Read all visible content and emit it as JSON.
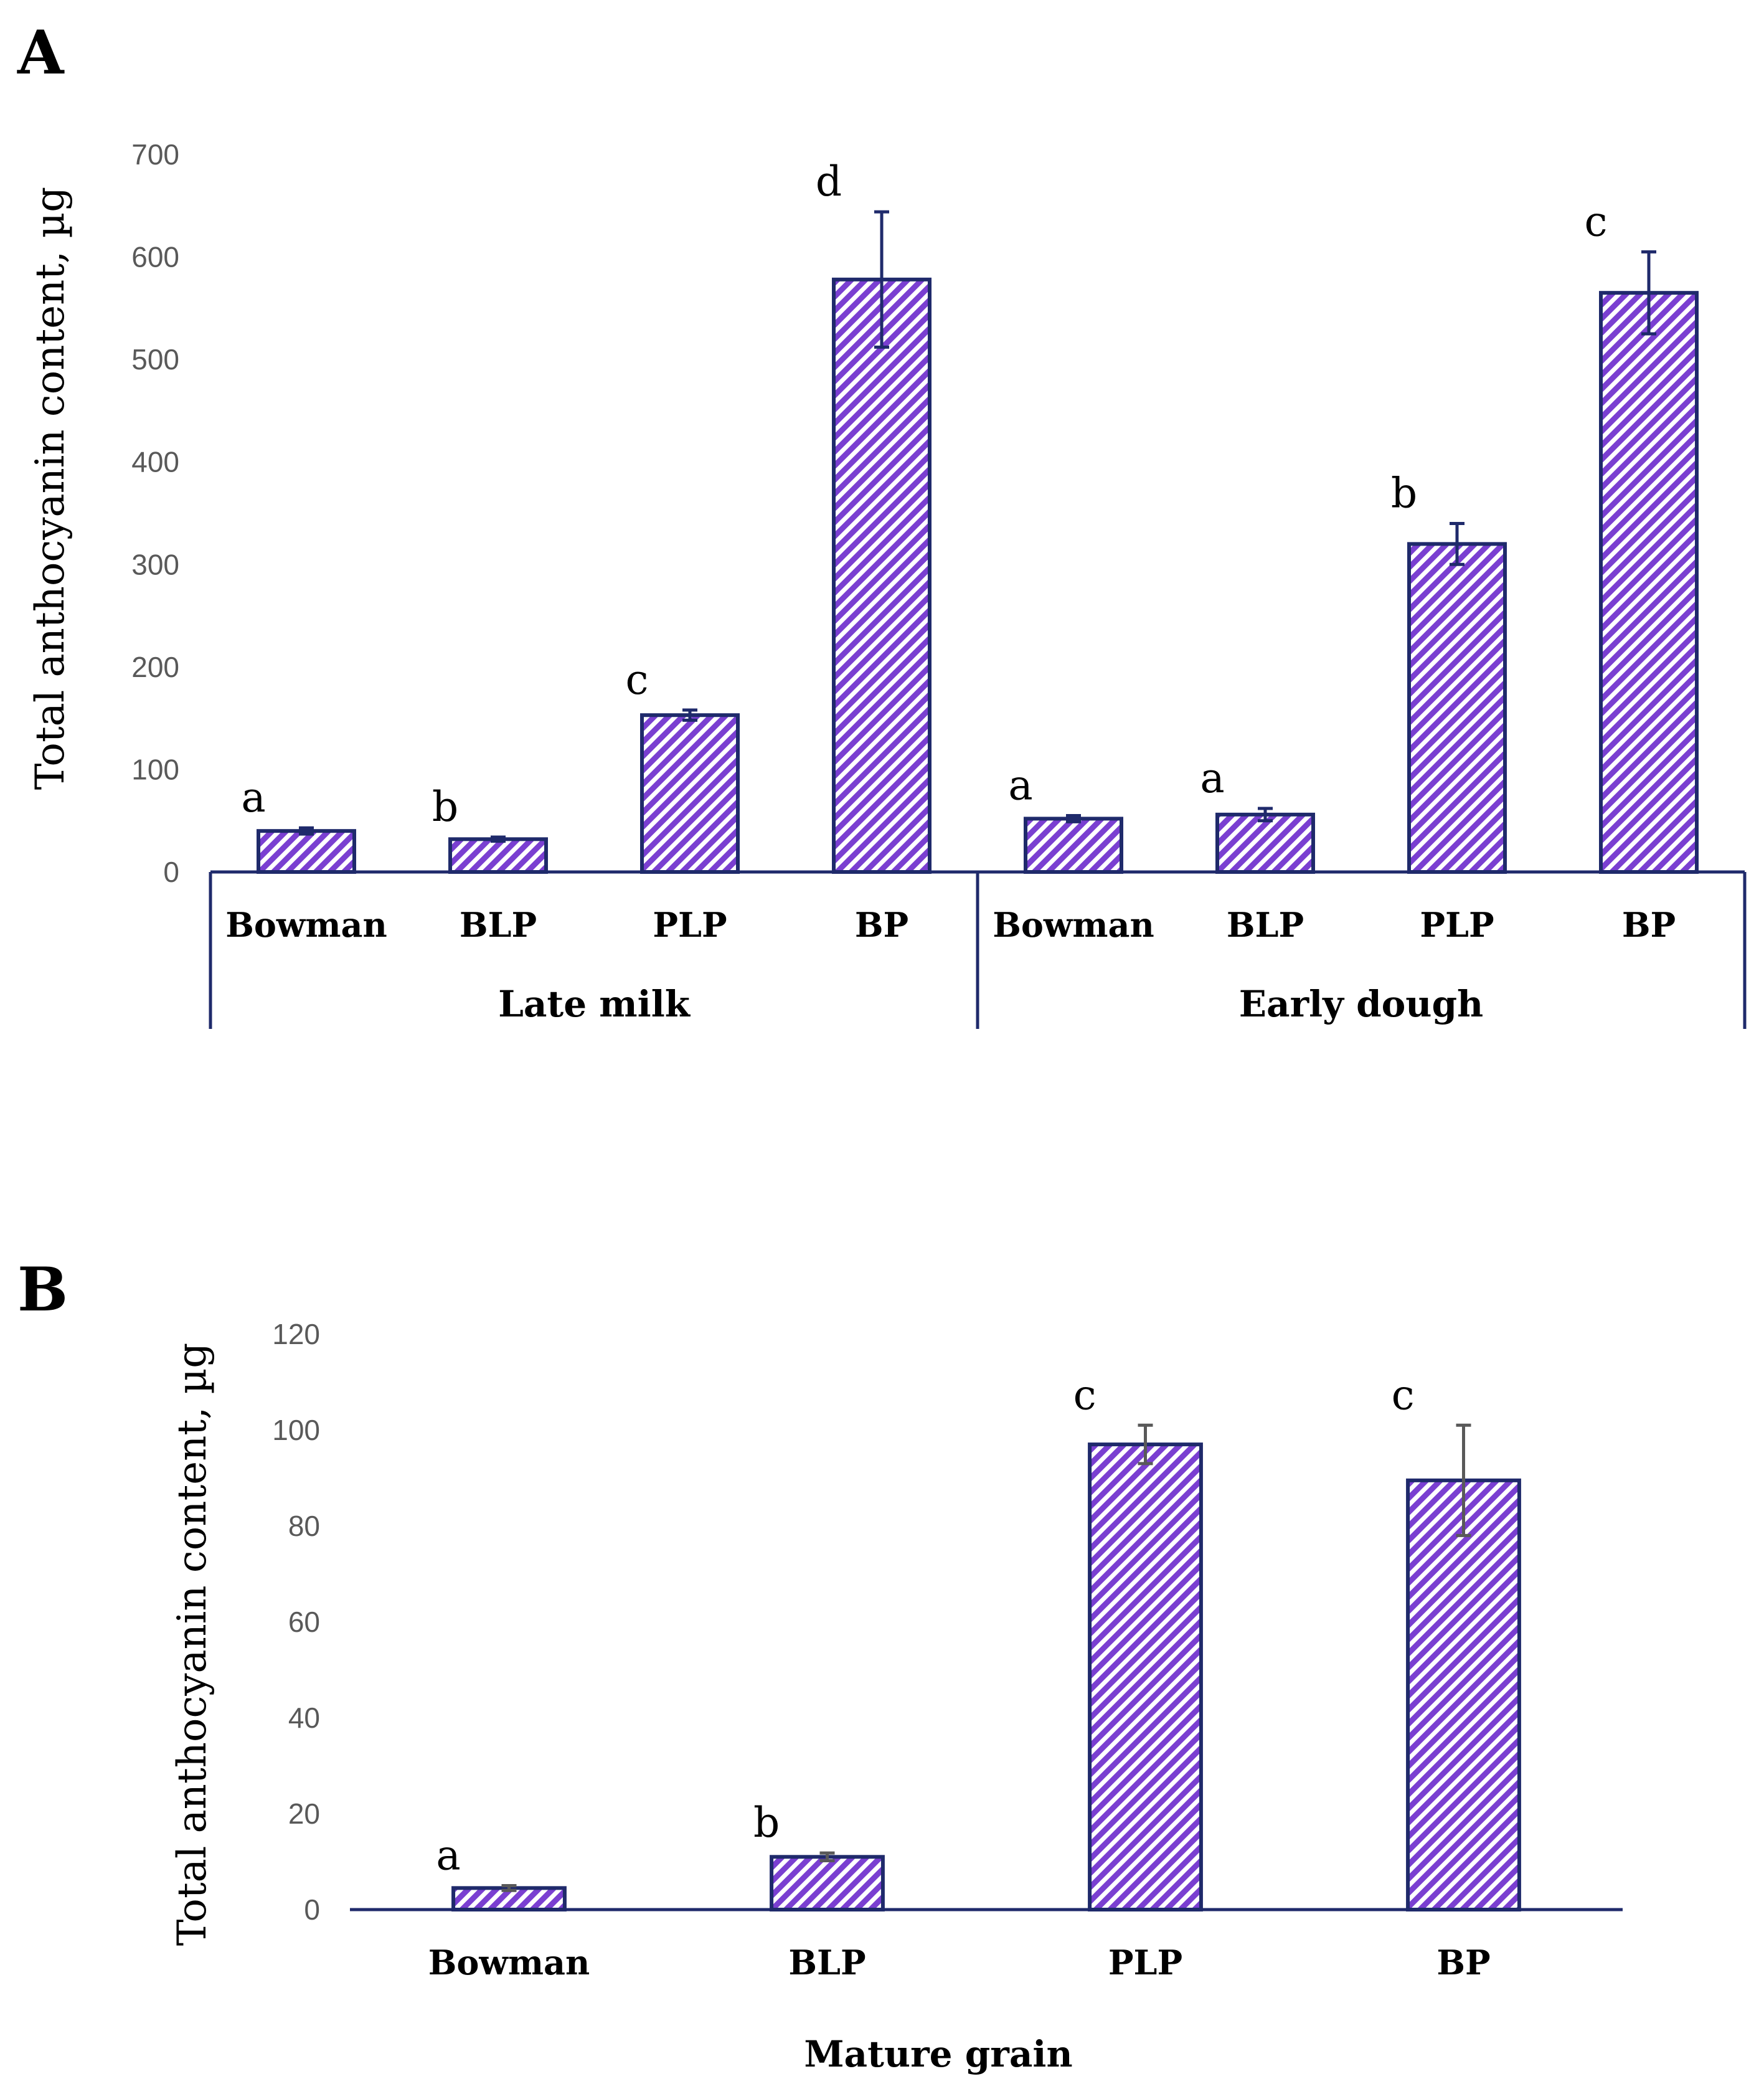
{
  "figure": {
    "colors": {
      "axis": "#1f2a6b",
      "bar_stripe": "#7a3fd1",
      "err_a": "#1f2a6b",
      "err_b": "#595959"
    }
  },
  "chart_data": [
    {
      "panel": "A",
      "type": "bar",
      "ylabel": "Total anthocyanin content, µg",
      "ylim": [
        0,
        700
      ],
      "yticks": [
        0,
        100,
        200,
        300,
        400,
        500,
        600,
        700
      ],
      "groups": [
        {
          "label": "Late milk",
          "bars": [
            {
              "category": "Bowman",
              "value": 40,
              "error": 3,
              "letter": "a"
            },
            {
              "category": "BLP",
              "value": 32,
              "error": 2,
              "letter": "b"
            },
            {
              "category": "PLP",
              "value": 153,
              "error": 5,
              "letter": "c"
            },
            {
              "category": "BP",
              "value": 578,
              "error": 66,
              "letter": "d"
            }
          ]
        },
        {
          "label": "Early dough",
          "bars": [
            {
              "category": "Bowman",
              "value": 52,
              "error": 3,
              "letter": "a"
            },
            {
              "category": "BLP",
              "value": 56,
              "error": 6,
              "letter": "a"
            },
            {
              "category": "PLP",
              "value": 320,
              "error": 20,
              "letter": "b"
            },
            {
              "category": "BP",
              "value": 565,
              "error": 40,
              "letter": "c"
            }
          ]
        }
      ]
    },
    {
      "panel": "B",
      "type": "bar",
      "ylabel": "Total anthocyanin content, µg",
      "xlabel": "Mature grain",
      "ylim": [
        0,
        120
      ],
      "yticks": [
        0,
        20,
        40,
        60,
        80,
        100,
        120
      ],
      "bars": [
        {
          "category": "Bowman",
          "value": 4.5,
          "error": 0.5,
          "letter": "a"
        },
        {
          "category": "BLP",
          "value": 11,
          "error": 0.8,
          "letter": "b"
        },
        {
          "category": "PLP",
          "value": 97,
          "error": 4,
          "letter": "c"
        },
        {
          "category": "BP",
          "value": 89.5,
          "error": 11.5,
          "letter": "c"
        }
      ]
    }
  ]
}
